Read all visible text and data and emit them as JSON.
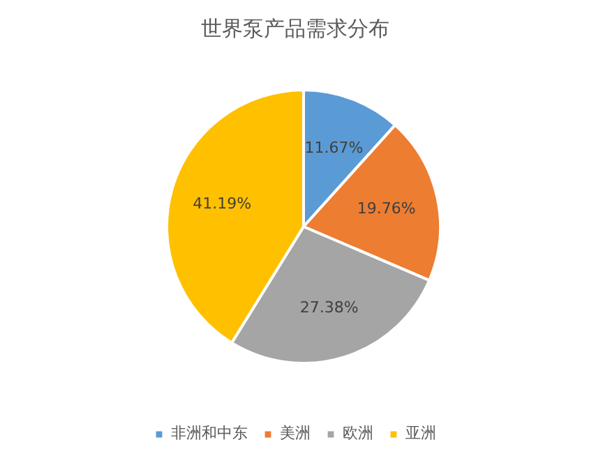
{
  "chart_data": {
    "type": "pie",
    "title": "世界泵产品需求分布",
    "categories": [
      "非洲和中东",
      "美洲",
      "欧洲",
      "亚洲"
    ],
    "values": [
      11.67,
      19.76,
      27.38,
      41.19
    ],
    "colors": [
      "#5b9bd5",
      "#ed7d31",
      "#a5a5a5",
      "#ffc000"
    ],
    "value_labels": [
      "11.67%",
      "19.76%",
      "27.38%",
      "41.19%"
    ],
    "legend": "bottom"
  }
}
